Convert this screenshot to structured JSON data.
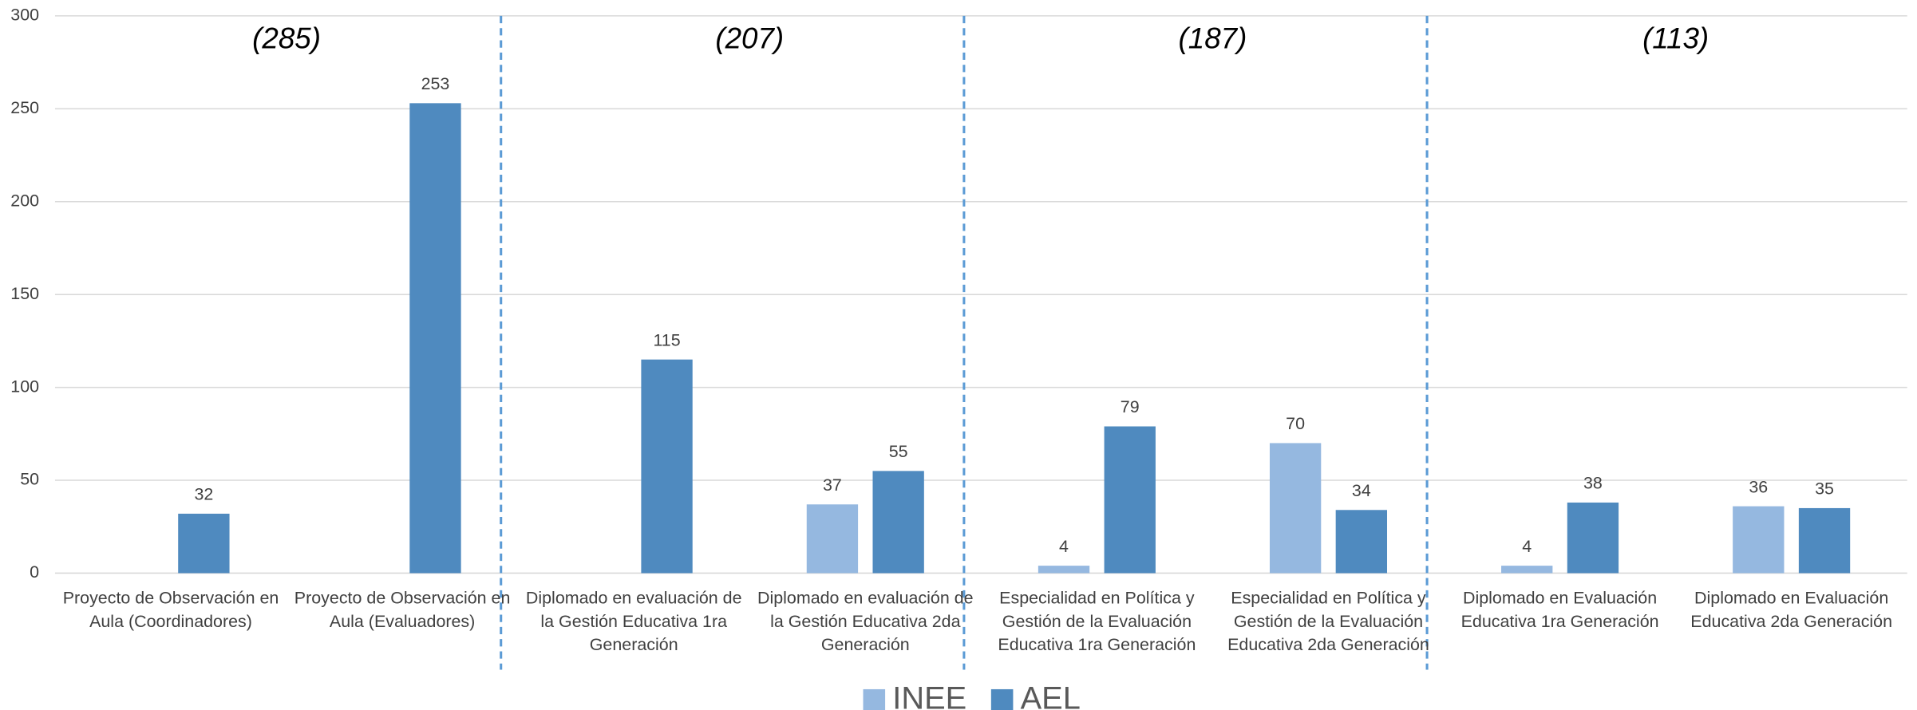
{
  "chart_data": {
    "type": "bar",
    "categories": [
      "Proyecto de Observación en Aula (Coordinadores)",
      "Proyecto de Observación en Aula (Evaluadores)",
      "Diplomado en evaluación de la Gestión Educativa 1ra Generación",
      "Diplomado en evaluación de la Gestión Educativa 2da Generación",
      "Especialidad en Política y Gestión de la Evaluación Educativa 1ra Generación",
      "Especialidad en Política y Gestión de la Evaluación Educativa 2da Generación",
      "Diplomado en Evaluación Educativa 1ra Generación",
      "Diplomado en Evaluación Educativa 2da Generación"
    ],
    "series": [
      {
        "name": "INEE",
        "color": "#95b8e0",
        "values": [
          null,
          null,
          null,
          37,
          4,
          70,
          4,
          36
        ]
      },
      {
        "name": "AEL",
        "color": "#4f8abf",
        "values": [
          32,
          253,
          115,
          55,
          79,
          34,
          38,
          35
        ]
      }
    ],
    "annotations": [
      "(285)",
      "(207)",
      "(187)",
      "(113)"
    ],
    "ylim": [
      0,
      300
    ],
    "yticks": [
      0,
      50,
      100,
      150,
      200,
      250,
      300
    ],
    "grid": true,
    "legend": "bottom"
  }
}
